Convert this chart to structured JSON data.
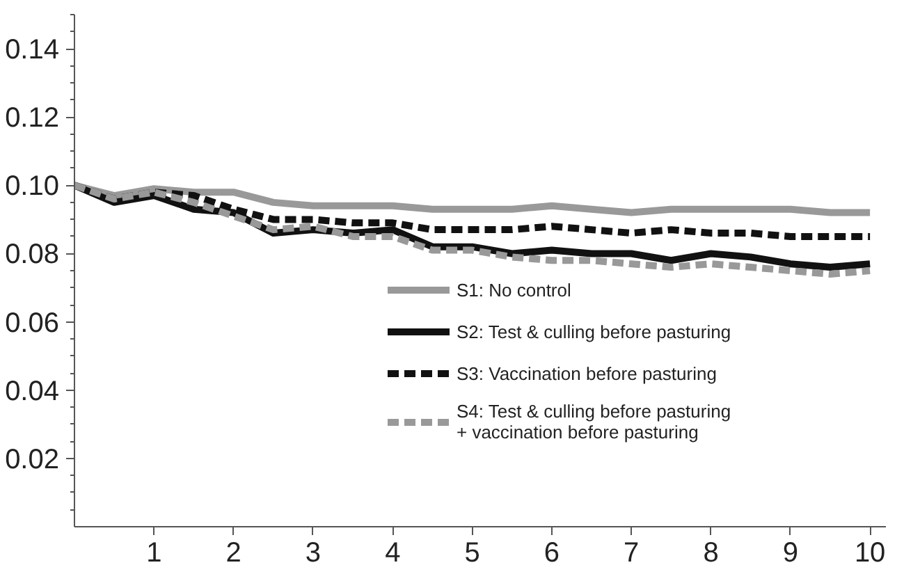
{
  "chart_data": {
    "type": "line",
    "x": [
      0,
      0.5,
      1,
      1.5,
      2,
      2.5,
      3,
      3.5,
      4,
      4.5,
      5,
      5.5,
      6,
      6.5,
      7,
      7.5,
      8,
      8.5,
      9,
      9.5,
      10
    ],
    "series": [
      {
        "name": "S1: No control",
        "color": "#999999",
        "line_style": "solid",
        "values": [
          0.1,
          0.097,
          0.099,
          0.098,
          0.098,
          0.095,
          0.094,
          0.094,
          0.094,
          0.093,
          0.093,
          0.093,
          0.094,
          0.093,
          0.092,
          0.093,
          0.093,
          0.093,
          0.093,
          0.092,
          0.092
        ]
      },
      {
        "name": "S2: Test & culling before pasturing",
        "color": "#111111",
        "line_style": "solid",
        "values": [
          0.1,
          0.095,
          0.097,
          0.093,
          0.092,
          0.086,
          0.087,
          0.086,
          0.087,
          0.082,
          0.082,
          0.08,
          0.081,
          0.08,
          0.08,
          0.078,
          0.08,
          0.079,
          0.077,
          0.076,
          0.077
        ]
      },
      {
        "name": "S3: Vaccination before pasturing",
        "color": "#111111",
        "line_style": "dashed",
        "values": [
          0.1,
          0.096,
          0.098,
          0.097,
          0.093,
          0.09,
          0.09,
          0.089,
          0.089,
          0.087,
          0.087,
          0.087,
          0.088,
          0.087,
          0.086,
          0.087,
          0.086,
          0.086,
          0.085,
          0.085,
          0.085
        ]
      },
      {
        "name": "S4: Test & culling before pasturing\n+ vaccination before pasturing",
        "color": "#999999",
        "line_style": "dashed",
        "values": [
          0.1,
          0.096,
          0.098,
          0.095,
          0.091,
          0.087,
          0.088,
          0.085,
          0.085,
          0.081,
          0.081,
          0.079,
          0.078,
          0.078,
          0.077,
          0.076,
          0.077,
          0.076,
          0.075,
          0.074,
          0.075
        ]
      }
    ],
    "xlim": [
      0,
      10.2
    ],
    "ylim": [
      0,
      0.15
    ],
    "xticks": [
      1,
      2,
      3,
      4,
      5,
      6,
      7,
      8,
      9,
      10
    ],
    "yticks": [
      0.02,
      0.04,
      0.06,
      0.08,
      {
        "value": 0.1,
        "label": "0.10"
      },
      0.12,
      0.14
    ],
    "grid": false,
    "legend": "right",
    "marker": "none"
  }
}
